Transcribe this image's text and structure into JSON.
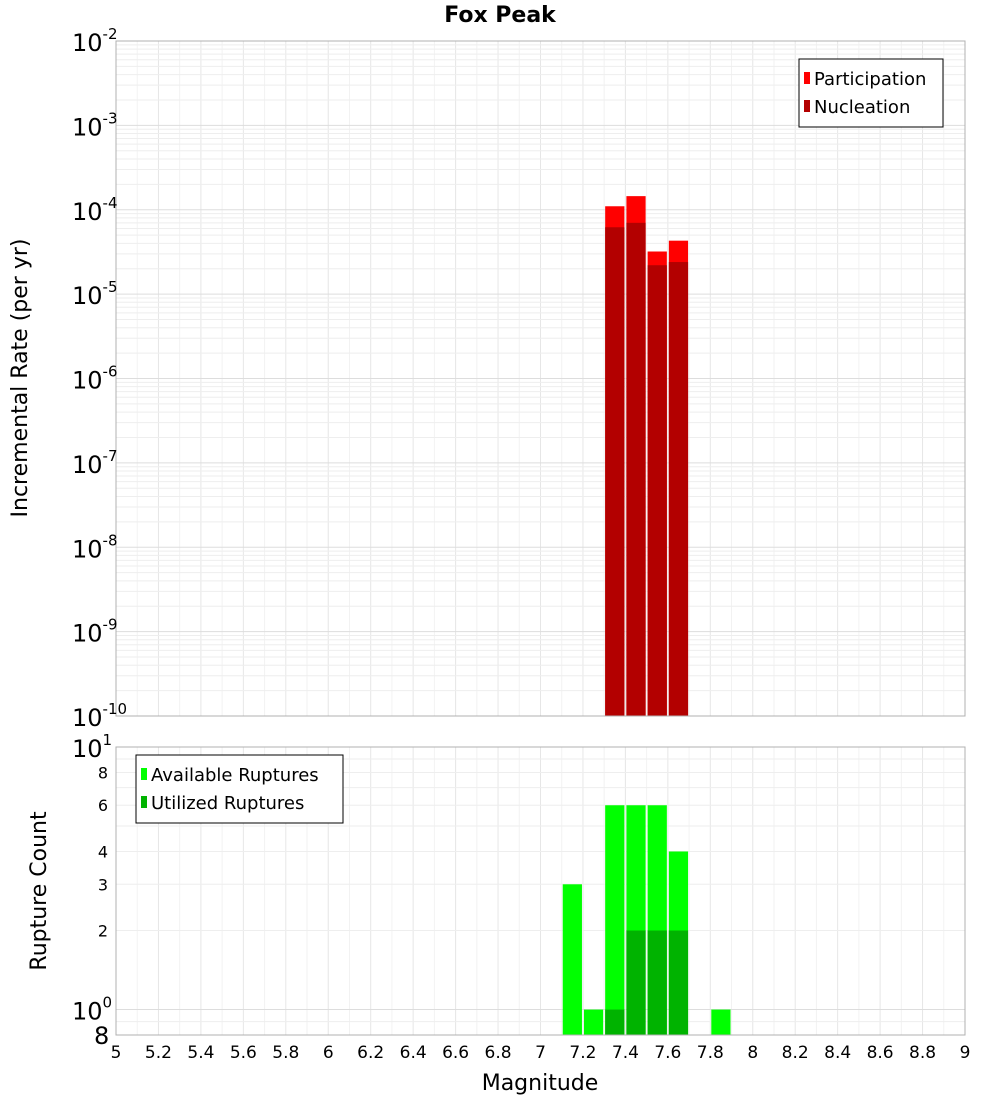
{
  "title": "Fox Peak",
  "x_axis": {
    "label": "Magnitude",
    "range": [
      5,
      9
    ],
    "ticks": [
      "5",
      "5.2",
      "5.4",
      "5.6",
      "5.8",
      "6",
      "6.2",
      "6.4",
      "6.6",
      "6.8",
      "7",
      "7.2",
      "7.4",
      "7.6",
      "7.8",
      "8",
      "8.2",
      "8.4",
      "8.6",
      "8.8",
      "9"
    ]
  },
  "chart_data": [
    {
      "type": "bar",
      "name": "incremental-rate",
      "ylabel": "Incremental Rate (per yr)",
      "yscale": "log",
      "ylim": [
        1e-10,
        0.01
      ],
      "y_tick_exponents": [
        "-10",
        "-9",
        "-8",
        "-7",
        "-6",
        "-5",
        "-4",
        "-3",
        "-2"
      ],
      "grid": true,
      "legend_position": "top-right",
      "bar_width": 0.1,
      "series": [
        {
          "name": "Participation",
          "color": "#ff0000",
          "x": [
            7.35,
            7.45,
            7.55,
            7.65
          ],
          "values": [
            0.00011,
            0.000145,
            3.2e-05,
            4.3e-05
          ]
        },
        {
          "name": "Nucleation",
          "color": "#b30000",
          "x": [
            7.35,
            7.45,
            7.55,
            7.65
          ],
          "values": [
            6.2e-05,
            7e-05,
            2.2e-05,
            2.4e-05
          ]
        }
      ]
    },
    {
      "type": "bar",
      "name": "rupture-count",
      "ylabel": "Rupture Count",
      "yscale": "log",
      "ylim": [
        0.8,
        10
      ],
      "y_major_exponents": [
        {
          "value": 1,
          "exp": "0"
        },
        {
          "value": 10,
          "exp": "1"
        }
      ],
      "y_minor_labels": [
        "2",
        "3",
        "4",
        "6",
        "8"
      ],
      "y_bottom_label": "8",
      "grid": true,
      "legend_position": "top-left",
      "bar_width": 0.1,
      "series": [
        {
          "name": "Available Ruptures",
          "color": "#00ff00",
          "x": [
            7.15,
            7.25,
            7.35,
            7.45,
            7.55,
            7.65,
            7.85
          ],
          "values": [
            3,
            1,
            6,
            6,
            6,
            4,
            1
          ]
        },
        {
          "name": "Utilized Ruptures",
          "color": "#00b300",
          "x": [
            7.35,
            7.45,
            7.55,
            7.65
          ],
          "values": [
            1,
            2,
            2,
            2
          ]
        }
      ]
    }
  ]
}
